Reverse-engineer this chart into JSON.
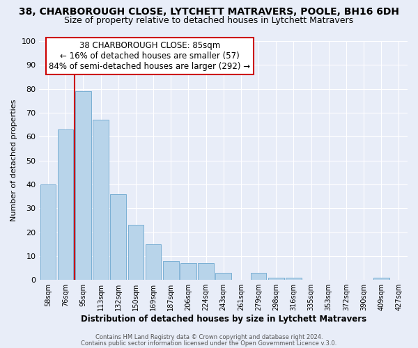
{
  "title1": "38, CHARBOROUGH CLOSE, LYTCHETT MATRAVERS, POOLE, BH16 6DH",
  "title2": "Size of property relative to detached houses in Lytchett Matravers",
  "xlabel": "Distribution of detached houses by size in Lytchett Matravers",
  "ylabel": "Number of detached properties",
  "bin_labels": [
    "58sqm",
    "76sqm",
    "95sqm",
    "113sqm",
    "132sqm",
    "150sqm",
    "169sqm",
    "187sqm",
    "206sqm",
    "224sqm",
    "243sqm",
    "261sqm",
    "279sqm",
    "298sqm",
    "316sqm",
    "335sqm",
    "353sqm",
    "372sqm",
    "390sqm",
    "409sqm",
    "427sqm"
  ],
  "bar_values": [
    40,
    63,
    79,
    67,
    36,
    23,
    15,
    8,
    7,
    7,
    3,
    0,
    3,
    1,
    1,
    0,
    0,
    0,
    0,
    1,
    0
  ],
  "bar_color": "#b8d4ea",
  "bar_edge_color": "#7aafd4",
  "vline_x": 1.5,
  "vline_color": "#cc0000",
  "annotation_title": "38 CHARBOROUGH CLOSE: 85sqm",
  "annotation_line1": "← 16% of detached houses are smaller (57)",
  "annotation_line2": "84% of semi-detached houses are larger (292) →",
  "annotation_box_color": "#cc0000",
  "ylim": [
    0,
    100
  ],
  "yticks": [
    0,
    10,
    20,
    30,
    40,
    50,
    60,
    70,
    80,
    90,
    100
  ],
  "footer1": "Contains HM Land Registry data © Crown copyright and database right 2024.",
  "footer2": "Contains public sector information licensed under the Open Government Licence v.3.0.",
  "bg_color": "#e8edf8",
  "plot_bg_color": "#e8edf8",
  "grid_color": "#ffffff",
  "title1_fontsize": 10,
  "title2_fontsize": 9
}
